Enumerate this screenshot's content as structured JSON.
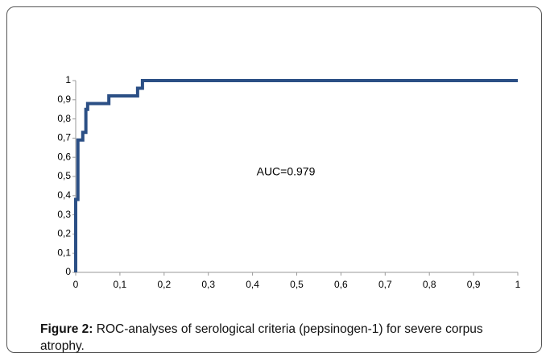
{
  "chart_data": {
    "type": "line",
    "annotation": "AUC=0.979",
    "x": [
      0,
      0,
      0.005,
      0.005,
      0.016,
      0.016,
      0.023,
      0.023,
      0.027,
      0.027,
      0.075,
      0.075,
      0.14,
      0.14,
      0.151,
      0.151,
      1
    ],
    "series": [
      {
        "color": "#2b4f85",
        "values": [
          0,
          0.38,
          0.38,
          0.69,
          0.69,
          0.73,
          0.73,
          0.85,
          0.85,
          0.88,
          0.88,
          0.92,
          0.92,
          0.96,
          0.96,
          1,
          1
        ]
      }
    ],
    "xlim": [
      0,
      1
    ],
    "ylim": [
      0,
      1
    ],
    "xticks": [
      0,
      {
        "value": 0.1,
        "label": "0,1"
      },
      {
        "value": 0.2,
        "label": "0,2"
      },
      {
        "value": 0.3,
        "label": "0,3"
      },
      {
        "value": 0.4,
        "label": "0,4"
      },
      {
        "value": 0.5,
        "label": "0,5"
      },
      {
        "value": 0.6,
        "label": "0,6"
      },
      {
        "value": 0.7,
        "label": "0,7"
      },
      {
        "value": 0.8,
        "label": "0,8"
      },
      {
        "value": 0.9,
        "label": "0,9"
      },
      1
    ],
    "yticks": [
      0,
      {
        "value": 0.1,
        "label": "0,1"
      },
      {
        "value": 0.2,
        "label": "0,2"
      },
      {
        "value": 0.3,
        "label": "0,3"
      },
      {
        "value": 0.4,
        "label": "0,4"
      },
      {
        "value": 0.5,
        "label": "0,5"
      },
      {
        "value": 0.6,
        "label": "0,6"
      },
      {
        "value": 0.7,
        "label": "0,7"
      },
      {
        "value": 0.8,
        "label": "0,8"
      },
      {
        "value": 0.9,
        "label": "0,9"
      },
      1
    ],
    "grid": false
  },
  "caption": {
    "label": "Figure 2:",
    "text": "ROC-analyses of serological criteria (pepsinogen-1) for severe corpus atrophy."
  }
}
